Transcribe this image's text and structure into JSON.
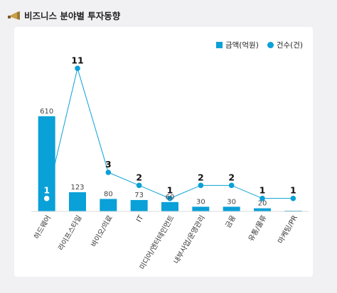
{
  "title": "비즈니스 분야별 투자동향",
  "title_icon": "megaphone-icon",
  "colors": {
    "accent": "#0aa0d8",
    "background": "#f1f1f3",
    "card": "#ffffff",
    "label": "#333333"
  },
  "chart_data": {
    "type": "bar",
    "categories": [
      "하드웨어",
      "라이프스타일",
      "바이오/의료",
      "IT",
      "미디어/엔터테인먼트",
      "내부사업/운영관리",
      "금융",
      "유통/물류",
      "마케팅/PR"
    ],
    "series": [
      {
        "name": "금액(억원)",
        "type": "bar",
        "axis": "left",
        "values": [
          610,
          123,
          80,
          73,
          60,
          30,
          30,
          20,
          1
        ]
      },
      {
        "name": "건수(건)",
        "type": "line",
        "axis": "right",
        "values": [
          1,
          11,
          3,
          2,
          1,
          2,
          2,
          1,
          1
        ]
      }
    ],
    "bar_value_labels": [
      "610",
      "123",
      "80",
      "73",
      "60",
      "30",
      "30",
      "20",
      ""
    ],
    "ylim_left": [
      0,
      1000
    ],
    "ylim_right": [
      0,
      12
    ],
    "legend_position": "top-right",
    "grid": false
  }
}
